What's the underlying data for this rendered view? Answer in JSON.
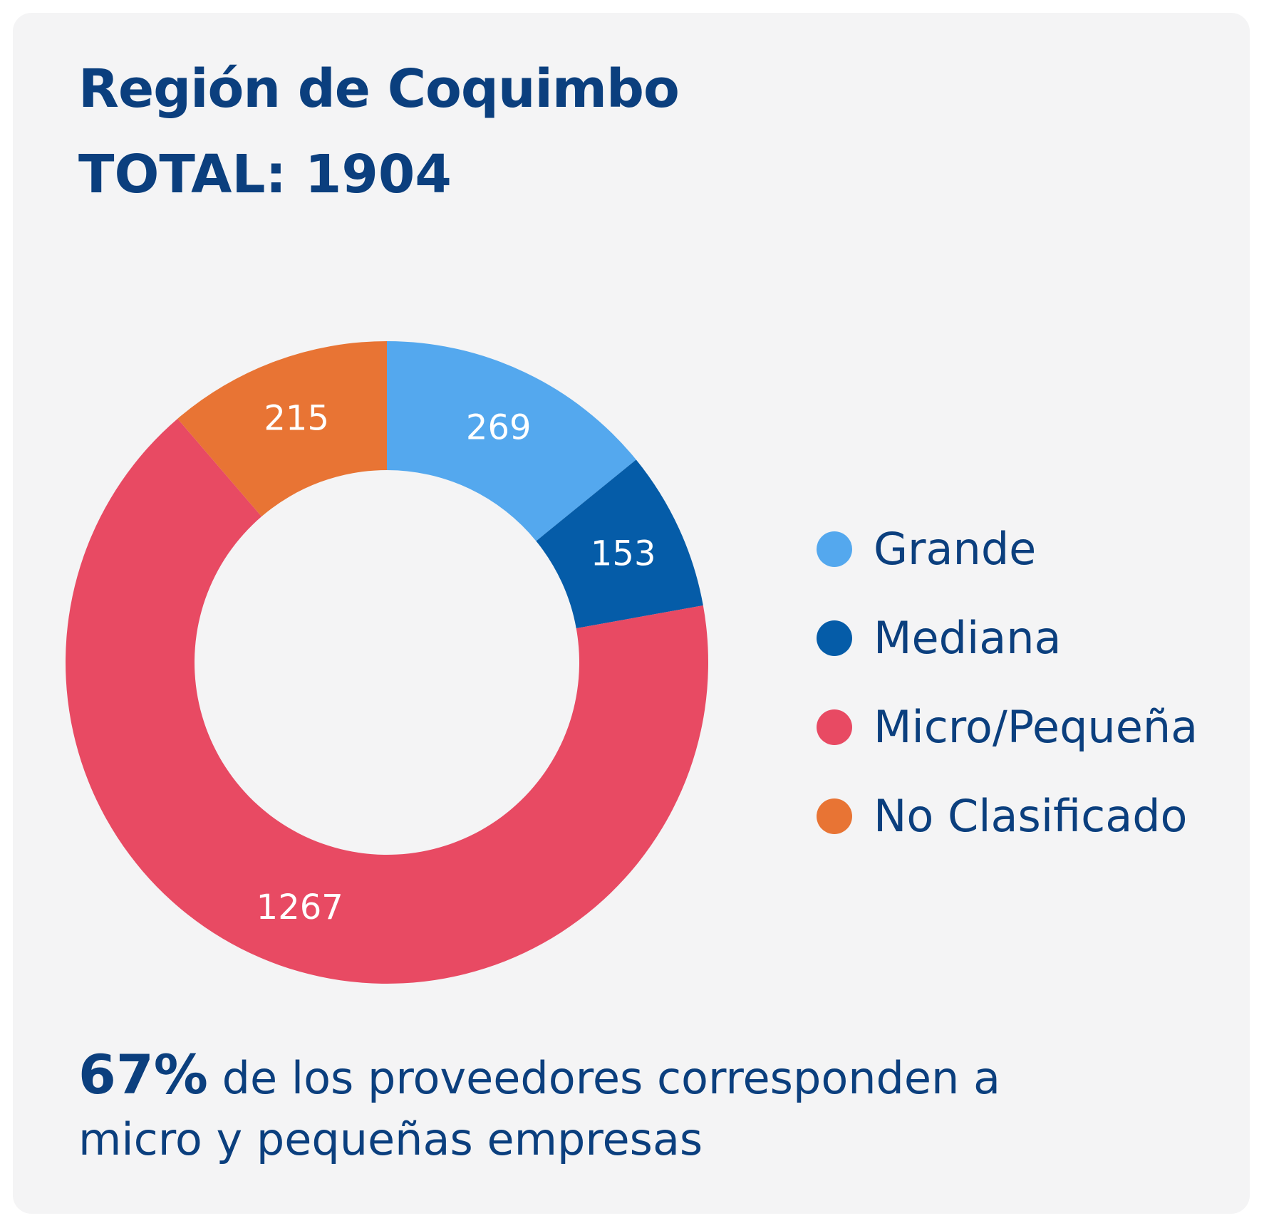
{
  "chart_data": {
    "type": "pie",
    "title": "Región de Coquimbo",
    "subtitle": "TOTAL: 1904",
    "categories": [
      "Grande",
      "Mediana",
      "Micro/Pequeña",
      "No Clasificado"
    ],
    "values": [
      269,
      153,
      1267,
      215
    ],
    "colors": [
      "#54a8ee",
      "#055ca8",
      "#e84a63",
      "#e87434"
    ],
    "donut": true,
    "legend_position": "right"
  },
  "footnote": {
    "highlight": "67%",
    "text": " de los proveedores corresponden a micro y pequeñas empresas"
  }
}
